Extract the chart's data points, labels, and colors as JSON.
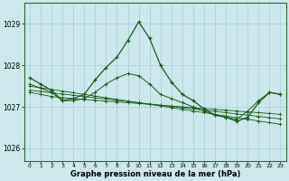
{
  "title": "Graphe pression niveau de la mer (hPa)",
  "background_color": "#cce8ec",
  "grid_color": "#aaccd4",
  "line_color": "#1a5c1a",
  "xlim": [
    -0.5,
    23.5
  ],
  "ylim": [
    1025.7,
    1029.5
  ],
  "yticks": [
    1026,
    1027,
    1028,
    1029
  ],
  "xticks": [
    0,
    1,
    2,
    3,
    4,
    5,
    6,
    7,
    8,
    9,
    10,
    11,
    12,
    13,
    14,
    15,
    16,
    17,
    18,
    19,
    20,
    21,
    22,
    23
  ],
  "series_flat": [
    [
      1027.35,
      1027.3,
      1027.25,
      1027.22,
      1027.2,
      1027.18,
      1027.16,
      1027.14,
      1027.12,
      1027.1,
      1027.08,
      1027.06,
      1027.04,
      1027.02,
      1027.0,
      1026.98,
      1026.96,
      1026.94,
      1026.92,
      1026.9,
      1026.88,
      1026.86,
      1026.84,
      1026.82
    ],
    [
      1027.4,
      1027.37,
      1027.34,
      1027.31,
      1027.28,
      1027.25,
      1027.22,
      1027.19,
      1027.16,
      1027.13,
      1027.1,
      1027.07,
      1027.04,
      1027.01,
      1026.98,
      1026.95,
      1026.92,
      1026.89,
      1026.86,
      1026.83,
      1026.8,
      1026.77,
      1026.74,
      1026.71
    ],
    [
      1027.5,
      1027.46,
      1027.42,
      1027.38,
      1027.34,
      1027.3,
      1027.26,
      1027.22,
      1027.18,
      1027.14,
      1027.1,
      1027.06,
      1027.02,
      1026.98,
      1026.94,
      1026.9,
      1026.86,
      1026.82,
      1026.78,
      1026.74,
      1026.7,
      1026.66,
      1026.62,
      1026.58
    ]
  ],
  "main_series": [
    1027.7,
    1027.55,
    1027.4,
    1027.15,
    1027.2,
    1027.3,
    1027.65,
    1027.95,
    1028.2,
    1028.6,
    1029.05,
    1028.65,
    1028.0,
    1027.6,
    1027.3,
    1027.15,
    1026.95,
    1026.8,
    1026.75,
    1026.65,
    1026.75,
    1027.1,
    1027.35,
    1027.3
  ],
  "secondary_series": [
    1027.55,
    1027.45,
    1027.35,
    1027.15,
    1027.15,
    1027.2,
    1027.35,
    1027.55,
    1027.7,
    1027.8,
    1027.75,
    1027.55,
    1027.3,
    1027.2,
    1027.1,
    1027.0,
    1026.9,
    1026.8,
    1026.75,
    1026.7,
    1026.9,
    1027.15,
    1027.35,
    1027.3
  ]
}
